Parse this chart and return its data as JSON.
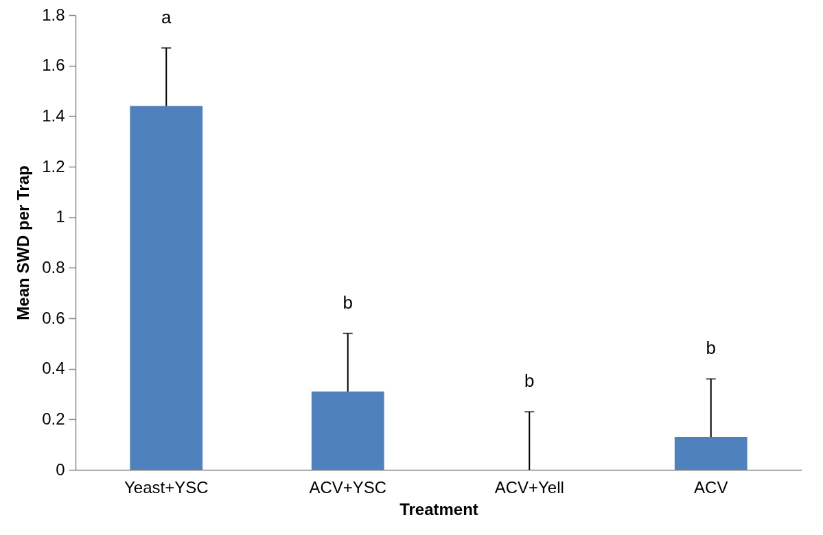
{
  "chart_data": {
    "type": "bar",
    "xlabel": "Treatment",
    "ylabel": "Mean SWD per Trap",
    "categories": [
      "Yeast+YSC",
      "ACV+YSC",
      "ACV+Yell",
      "ACV"
    ],
    "values": [
      1.44,
      0.31,
      0,
      0.13
    ],
    "errors": [
      [
        1.44,
        1.67
      ],
      [
        0.31,
        0.54
      ],
      [
        0,
        0.23
      ],
      [
        0.13,
        0.36
      ]
    ],
    "color": "#4f81bd",
    "ylim": [
      0,
      1.8
    ],
    "yticks": [
      {
        "value": 0,
        "label": "0"
      },
      0.2,
      0.4,
      0.6,
      0.8,
      {
        "value": 1,
        "label": "1"
      },
      1.2,
      1.4,
      1.6,
      1.8
    ],
    "grid": false,
    "annotations": [
      "a",
      "b",
      "b",
      "b"
    ]
  }
}
